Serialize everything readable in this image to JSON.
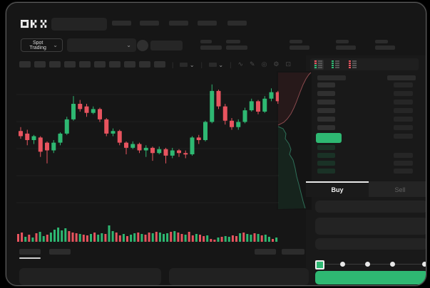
{
  "brand": {
    "name": "OKX"
  },
  "toolbar": {
    "market_selector": "Spot Trading"
  },
  "icons": {
    "divider": "|",
    "chevron_down": "⌄",
    "wave": "∿",
    "pencil": "✎",
    "camera": "◎",
    "gear": "⚙",
    "fullscreen": "⊡"
  },
  "order_panel": {
    "buy_tab": "Buy",
    "sell_tab": "Sell"
  },
  "colors": {
    "accent_green": "#2eb872",
    "candle_up": "#2eb872",
    "candle_down": "#e8545f",
    "depth_ask_fill": "rgba(220,80,90,0.10)",
    "depth_ask_line": "#8a4a4e",
    "depth_bid_fill": "rgba(46,184,114,0.10)",
    "depth_bid_line": "#2e6f58"
  },
  "chart_data": [
    {
      "type": "candlestick",
      "name": "price-chart",
      "x_unit": "bar-index",
      "price_scale": "normalized-0-100",
      "grid": "horizontal-faint",
      "candles": [
        [
          57,
          60,
          51,
          53
        ],
        [
          55,
          58,
          46,
          50
        ],
        [
          50,
          54,
          47,
          53
        ],
        [
          52,
          53,
          37,
          41
        ],
        [
          48,
          49,
          32,
          42
        ],
        [
          42,
          50,
          40,
          48
        ],
        [
          48,
          56,
          46,
          55
        ],
        [
          55,
          68,
          54,
          66
        ],
        [
          66,
          84,
          65,
          78
        ],
        [
          78,
          81,
          72,
          74
        ],
        [
          76,
          78,
          68,
          71
        ],
        [
          71,
          76,
          70,
          74
        ],
        [
          74,
          75,
          64,
          66
        ],
        [
          66,
          67,
          53,
          55
        ],
        [
          55,
          59,
          53,
          57
        ],
        [
          57,
          58,
          46,
          48
        ],
        [
          48,
          49,
          39,
          44
        ],
        [
          44,
          49,
          43,
          47
        ],
        [
          47,
          48,
          40,
          42
        ],
        [
          42,
          46,
          37,
          44
        ],
        [
          44,
          45,
          34,
          40
        ],
        [
          40,
          45,
          39,
          43
        ],
        [
          43,
          44,
          32,
          38
        ],
        [
          38,
          44,
          36,
          42
        ],
        [
          42,
          43,
          37,
          40
        ],
        [
          40,
          42,
          36,
          39
        ],
        [
          39,
          53,
          38,
          52
        ],
        [
          52,
          54,
          47,
          50
        ],
        [
          50,
          65,
          49,
          64
        ],
        [
          64,
          93,
          63,
          88
        ],
        [
          88,
          89,
          74,
          76
        ],
        [
          76,
          78,
          62,
          65
        ],
        [
          65,
          67,
          58,
          60
        ],
        [
          60,
          66,
          58,
          64
        ],
        [
          64,
          75,
          63,
          73
        ],
        [
          73,
          82,
          72,
          80
        ],
        [
          80,
          81,
          70,
          72
        ],
        [
          72,
          84,
          71,
          82
        ],
        [
          82,
          90,
          80,
          87
        ],
        [
          87,
          88,
          78,
          80
        ]
      ]
    },
    {
      "type": "bar",
      "name": "volume",
      "values": [
        11,
        13,
        7,
        10,
        6,
        12,
        14,
        8,
        10,
        13,
        17,
        20,
        16,
        19,
        15,
        13,
        12,
        11,
        10,
        9,
        11,
        13,
        10,
        12,
        11,
        23,
        15,
        13,
        9,
        11,
        8,
        10,
        12,
        13,
        11,
        10,
        13,
        12,
        14,
        13,
        11,
        12,
        14,
        15,
        13,
        11,
        10,
        14,
        9,
        11,
        10,
        8,
        9,
        4,
        3,
        6,
        7,
        8,
        7,
        9,
        8,
        12,
        13,
        11,
        10,
        12,
        11,
        9,
        10,
        7,
        4,
        6
      ],
      "dirs": [
        "d",
        "d",
        "u",
        "d",
        "u",
        "d",
        "u",
        "u",
        "d",
        "u",
        "u",
        "u",
        "u",
        "u",
        "d",
        "d",
        "d",
        "u",
        "d",
        "d",
        "u",
        "d",
        "u",
        "u",
        "d",
        "u",
        "u",
        "d",
        "d",
        "u",
        "d",
        "u",
        "u",
        "d",
        "u",
        "d",
        "d",
        "u",
        "d",
        "u",
        "u",
        "u",
        "d",
        "u",
        "d",
        "d",
        "u",
        "d",
        "d",
        "u",
        "d",
        "d",
        "u",
        "d",
        "d",
        "u",
        "d",
        "u",
        "u",
        "d",
        "d",
        "u",
        "d",
        "u",
        "u",
        "d",
        "u",
        "d",
        "u",
        "u",
        "d",
        "u"
      ]
    },
    {
      "type": "area",
      "name": "depth",
      "orientation": "vertical",
      "asks_curve": [
        [
          2,
          76
        ],
        [
          10,
          72
        ],
        [
          15,
          67
        ],
        [
          20,
          60
        ],
        [
          24,
          52
        ],
        [
          27,
          45
        ],
        [
          30,
          37
        ],
        [
          33,
          29
        ],
        [
          37,
          19
        ],
        [
          41,
          11
        ],
        [
          45,
          5
        ],
        [
          48,
          2
        ]
      ],
      "bids_curve": [
        [
          2,
          78
        ],
        [
          9,
          81
        ],
        [
          13,
          88
        ],
        [
          12,
          95
        ],
        [
          17,
          102
        ],
        [
          20,
          110
        ],
        [
          18,
          117
        ],
        [
          23,
          125
        ],
        [
          26,
          137
        ],
        [
          28,
          148
        ],
        [
          31,
          159
        ],
        [
          34,
          171
        ],
        [
          37,
          183
        ],
        [
          40,
          193
        ]
      ]
    }
  ]
}
